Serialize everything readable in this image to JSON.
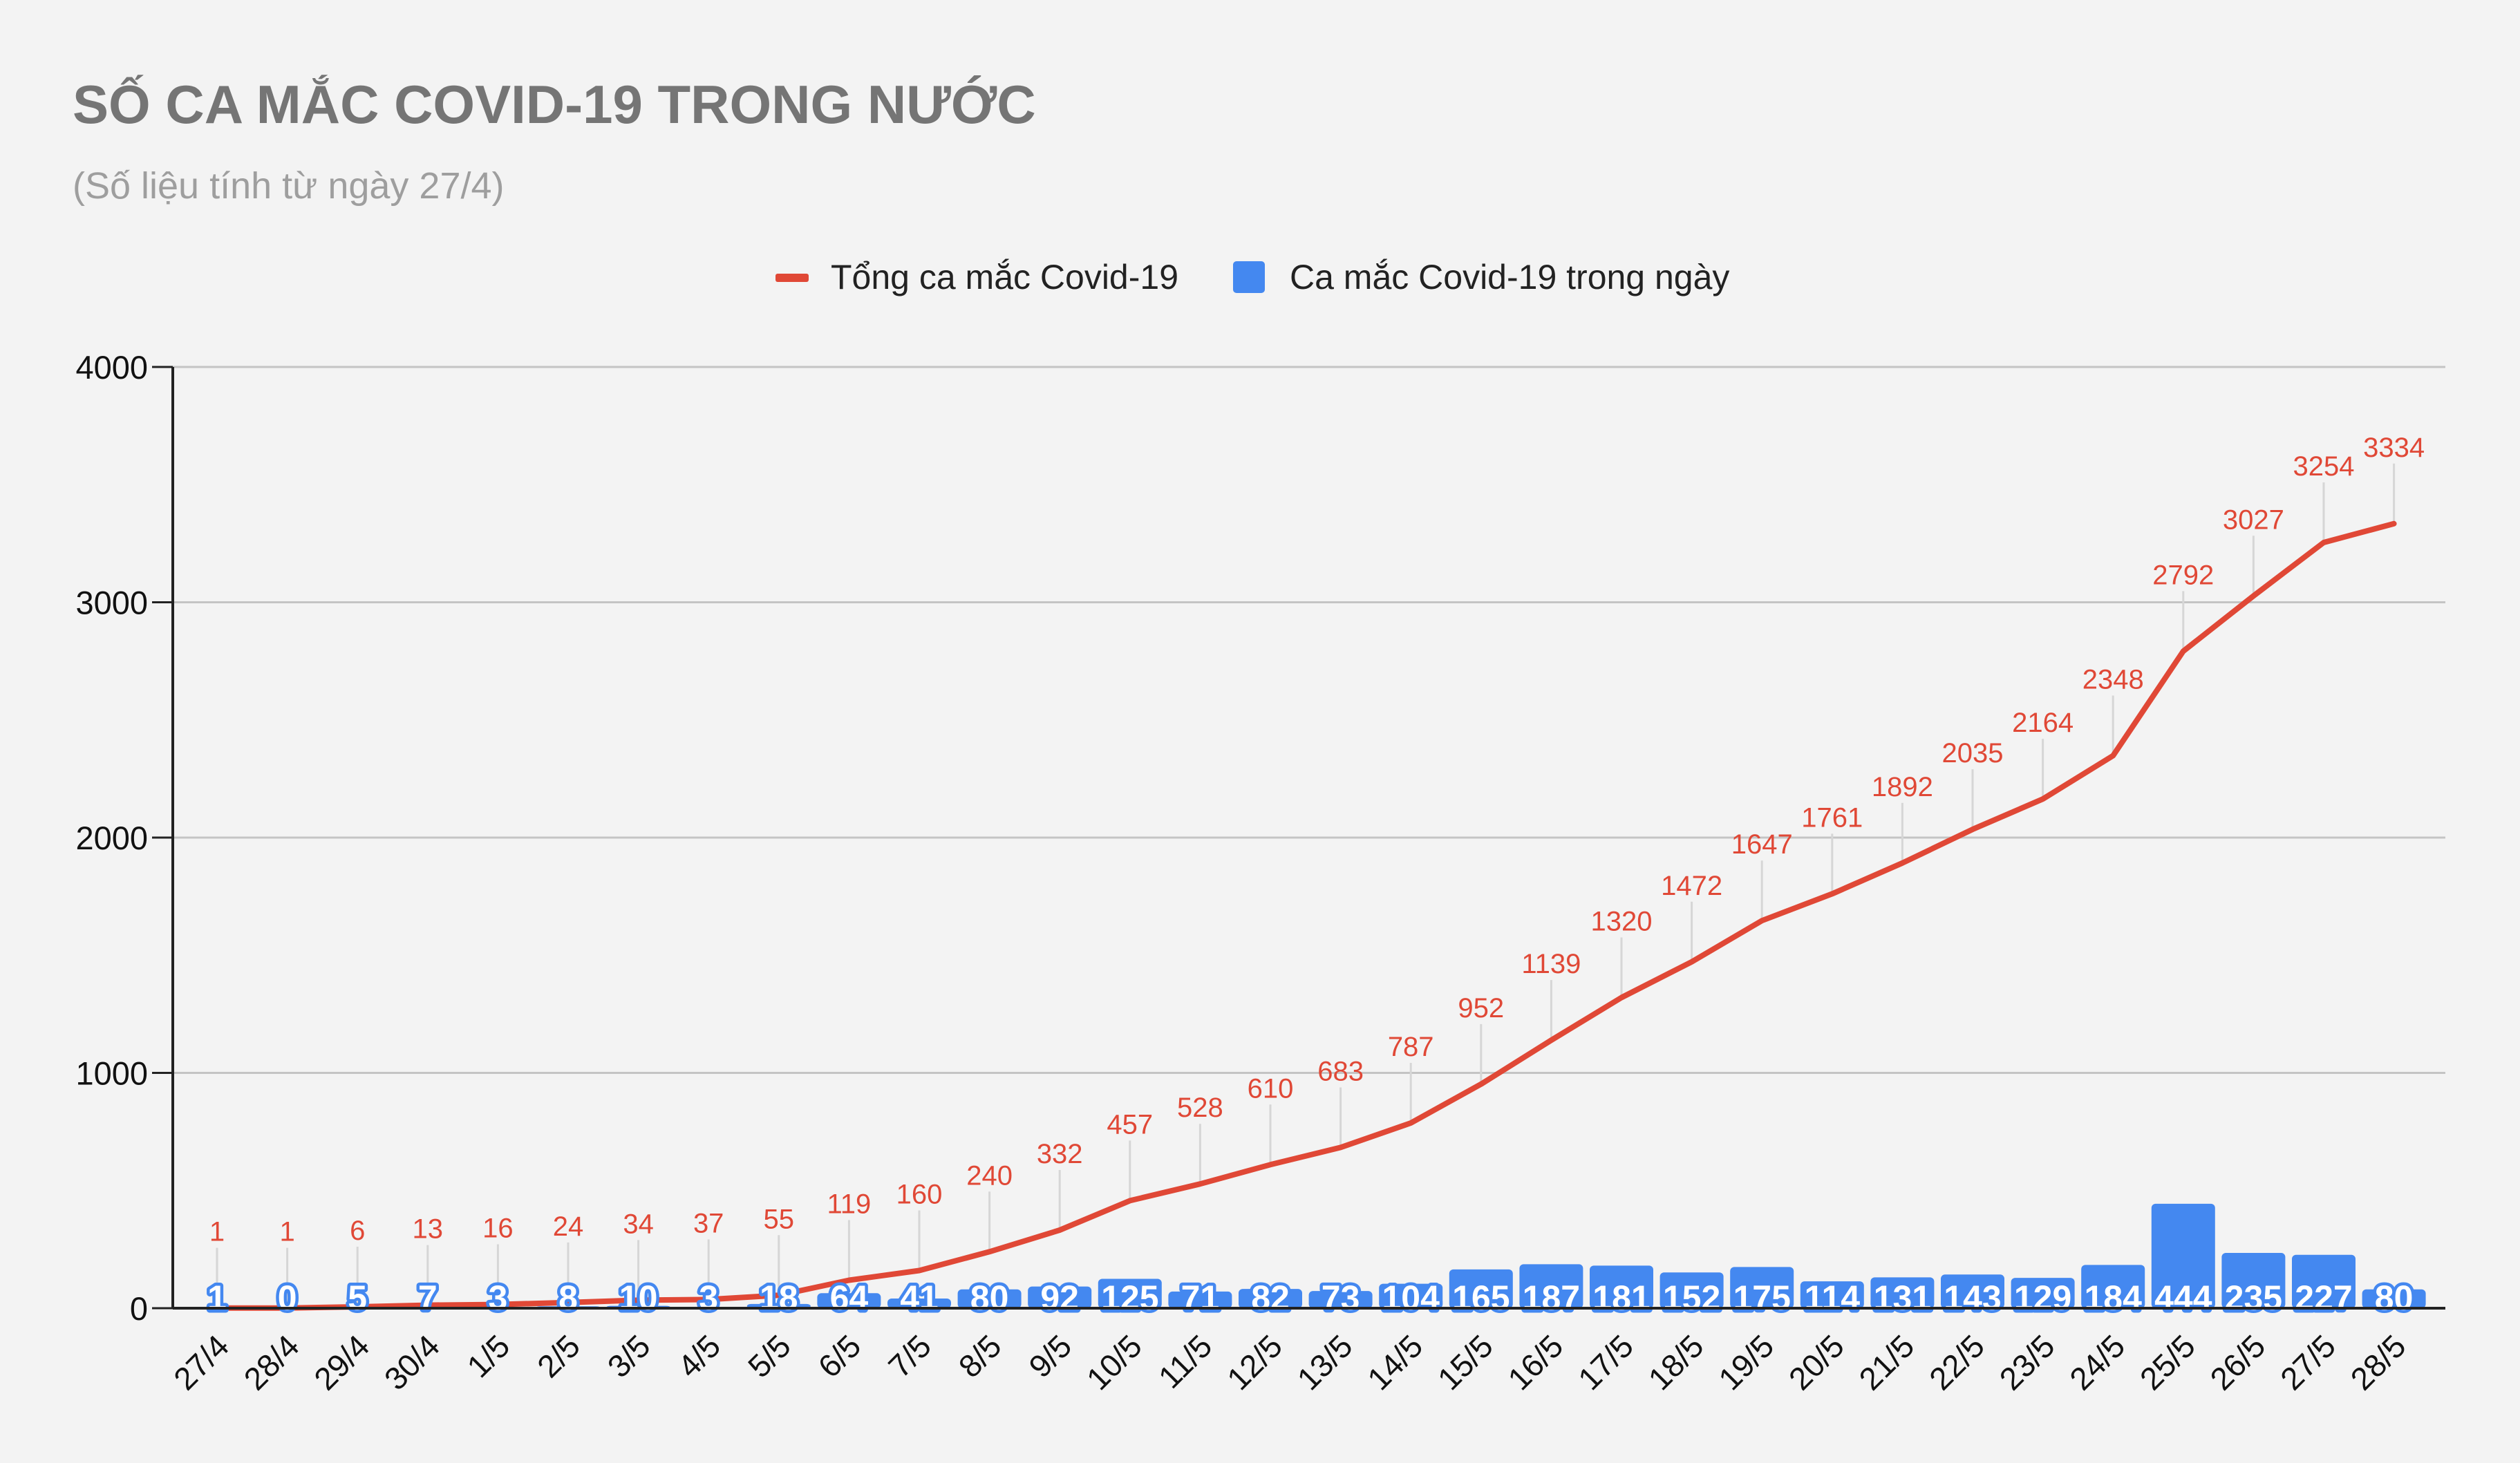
{
  "chart_data": {
    "type": "bar",
    "title": "SỐ CA MẮC COVID-19 TRONG NƯỚC",
    "subtitle": "(Số liệu tính từ ngày 27/4)",
    "legend_position": "top-center",
    "grid": true,
    "ylim": [
      0,
      4000
    ],
    "yticks": [
      "0",
      "1000",
      "2000",
      "3000",
      "4000"
    ],
    "categories": [
      "27/4",
      "28/4",
      "29/4",
      "30/4",
      "1/5",
      "2/5",
      "3/5",
      "4/5",
      "5/5",
      "6/5",
      "7/5",
      "8/5",
      "9/5",
      "10/5",
      "11/5",
      "12/5",
      "13/5",
      "14/5",
      "15/5",
      "16/5",
      "17/5",
      "18/5",
      "19/5",
      "20/5",
      "21/5",
      "22/5",
      "23/5",
      "24/5",
      "25/5",
      "26/5",
      "27/5",
      "28/5"
    ],
    "series": [
      {
        "name": "Tổng ca mắc Covid-19",
        "type": "line",
        "color": "#e04836",
        "values": [
          1,
          1,
          6,
          13,
          16,
          24,
          34,
          37,
          55,
          119,
          160,
          240,
          332,
          457,
          528,
          610,
          683,
          787,
          952,
          1139,
          1320,
          1472,
          1647,
          1761,
          1892,
          2035,
          2164,
          2348,
          2792,
          3027,
          3254,
          3334
        ]
      },
      {
        "name": "Ca mắc Covid-19 trong ngày",
        "type": "bar",
        "color": "#4488f0",
        "values": [
          1,
          0,
          5,
          7,
          3,
          8,
          10,
          3,
          18,
          64,
          41,
          80,
          92,
          125,
          71,
          82,
          73,
          104,
          165,
          187,
          181,
          152,
          175,
          114,
          131,
          143,
          129,
          184,
          444,
          235,
          227,
          80
        ]
      }
    ]
  }
}
